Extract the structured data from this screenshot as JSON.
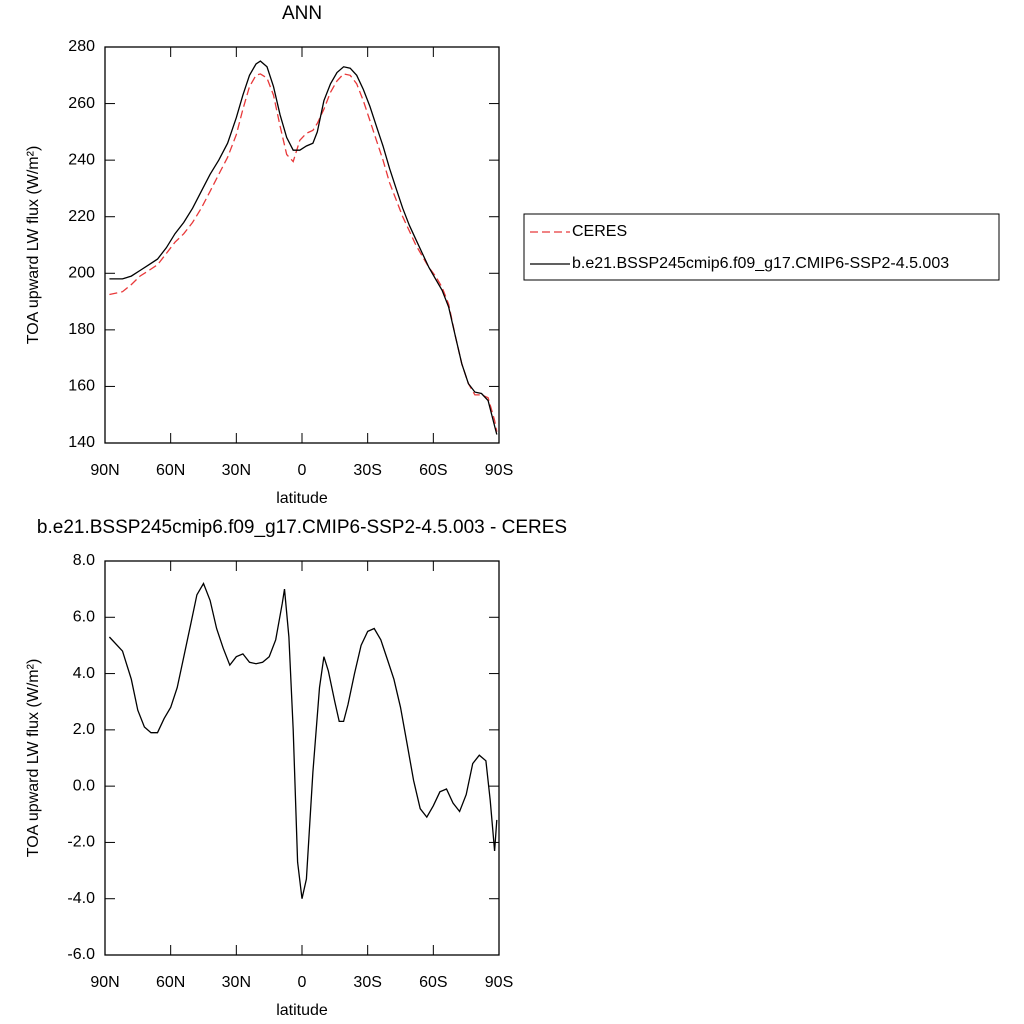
{
  "chart_data": [
    {
      "type": "line",
      "title": "ANN",
      "xlabel": "latitude",
      "ylabel": "TOA upward LW flux (W/m²)",
      "x": [
        88,
        82,
        78,
        74,
        70,
        66,
        62,
        58,
        54,
        50,
        46,
        42,
        38,
        34,
        30,
        27,
        24,
        21,
        19,
        16,
        13,
        10,
        7,
        4,
        1,
        -2,
        -5,
        -7,
        -10,
        -13,
        -16,
        -19,
        -22,
        -25,
        -28,
        -31,
        -34,
        -37,
        -40,
        -43,
        -46,
        -49,
        -52,
        -55,
        -58,
        -61,
        -64,
        -67,
        -70,
        -73,
        -76,
        -79,
        -82,
        -85,
        -88,
        -89
      ],
      "series": [
        {
          "name": "CERES",
          "color": "#e8393a",
          "line_style": "dashed",
          "values": [
            192.5,
            193.5,
            196,
            199,
            201,
            203,
            207,
            211,
            214,
            218,
            223,
            229,
            235,
            241,
            249,
            258,
            266,
            270,
            270.5,
            269,
            263,
            252,
            242,
            239.5,
            247,
            249.5,
            250.5,
            253,
            258,
            264,
            268,
            270.5,
            270,
            267,
            261,
            254,
            247,
            240,
            232,
            226,
            220,
            215,
            210,
            206,
            202,
            199,
            195,
            189,
            178,
            168,
            161,
            157,
            157,
            156,
            148,
            144
          ]
        },
        {
          "name": "b.e21.BSSP245cmip6.f09_g17.CMIP6-SSP2-4.5.003",
          "color": "#000000",
          "line_style": "solid",
          "values": [
            198,
            198,
            199,
            201,
            203,
            205,
            209,
            214,
            218,
            223,
            229,
            235,
            240,
            246,
            255,
            263,
            270,
            274,
            275,
            273,
            266,
            256,
            248,
            243.5,
            243.5,
            245,
            246,
            250,
            261,
            267,
            271,
            273,
            272.5,
            270,
            265,
            259,
            252,
            245,
            237,
            230,
            223,
            217,
            212,
            207,
            202,
            198,
            194,
            188,
            178,
            168,
            161,
            158,
            157.5,
            155,
            146,
            143
          ]
        }
      ],
      "xlim": [
        90,
        -90
      ],
      "xticks": [
        {
          "value": 90,
          "label": "90N"
        },
        {
          "value": 60,
          "label": "60N"
        },
        {
          "value": 30,
          "label": "30N"
        },
        0,
        {
          "value": -30,
          "label": "30S"
        },
        {
          "value": -60,
          "label": "60S"
        },
        {
          "value": -90,
          "label": "90S"
        }
      ],
      "ylim": [
        140,
        280
      ],
      "yticks": [
        140,
        160,
        180,
        200,
        220,
        240,
        260,
        280
      ],
      "legend": "right"
    },
    {
      "type": "line",
      "title": "b.e21.BSSP245cmip6.f09_g17.CMIP6-SSP2-4.5.003 - CERES",
      "xlabel": "latitude",
      "ylabel": "TOA upward LW flux (W/m²)",
      "x": [
        88,
        82,
        78,
        75,
        72,
        69,
        66,
        63,
        60,
        57,
        54,
        51,
        48,
        45,
        42,
        39,
        36,
        33,
        30,
        27,
        24,
        21,
        18,
        15,
        12,
        9,
        8,
        6,
        4,
        2,
        0,
        -2,
        -5,
        -8,
        -10,
        -12,
        -15,
        -17,
        -19,
        -21,
        -24,
        -27,
        -30,
        -33,
        -36,
        -39,
        -42,
        -45,
        -48,
        -51,
        -54,
        -57,
        -60,
        -63,
        -66,
        -69,
        -72,
        -75,
        -78,
        -81,
        -84,
        -86,
        -88,
        -89
      ],
      "series": [
        {
          "name": "b.e21.BSSP245cmip6.f09_g17.CMIP6-SSP2-4.5.003 - CERES",
          "color": "#000000",
          "line_style": "solid",
          "values": [
            5.3,
            4.8,
            3.8,
            2.7,
            2.1,
            1.9,
            1.9,
            2.4,
            2.8,
            3.5,
            4.6,
            5.7,
            6.8,
            7.2,
            6.6,
            5.6,
            4.9,
            4.3,
            4.6,
            4.7,
            4.4,
            4.35,
            4.4,
            4.6,
            5.2,
            6.5,
            7.0,
            5.3,
            2,
            -2.7,
            -4.0,
            -3.3,
            0.5,
            3.5,
            4.6,
            4.1,
            3.0,
            2.3,
            2.3,
            2.9,
            4.0,
            5.0,
            5.5,
            5.6,
            5.2,
            4.5,
            3.8,
            2.8,
            1.5,
            0.2,
            -0.8,
            -1.1,
            -0.7,
            -0.2,
            -0.1,
            -0.6,
            -0.9,
            -0.3,
            0.8,
            1.1,
            0.9,
            -0.5,
            -2.3,
            -1.2
          ]
        }
      ],
      "xlim": [
        90,
        -90
      ],
      "xticks": [
        {
          "value": 90,
          "label": "90N"
        },
        {
          "value": 60,
          "label": "60N"
        },
        {
          "value": 30,
          "label": "30N"
        },
        0,
        {
          "value": -30,
          "label": "30S"
        },
        {
          "value": -60,
          "label": "60S"
        },
        {
          "value": -90,
          "label": "90S"
        }
      ],
      "ylim": [
        -6,
        8
      ],
      "yticks": [
        {
          "value": -6,
          "label": "-6.0"
        },
        {
          "value": -4,
          "label": "-4.0"
        },
        {
          "value": -2,
          "label": "-2.0"
        },
        {
          "value": 0,
          "label": "0.0"
        },
        {
          "value": 2,
          "label": "2.0"
        },
        {
          "value": 4,
          "label": "4.0"
        },
        {
          "value": 6,
          "label": "6.0"
        },
        {
          "value": 8,
          "label": "8.0"
        }
      ]
    }
  ]
}
